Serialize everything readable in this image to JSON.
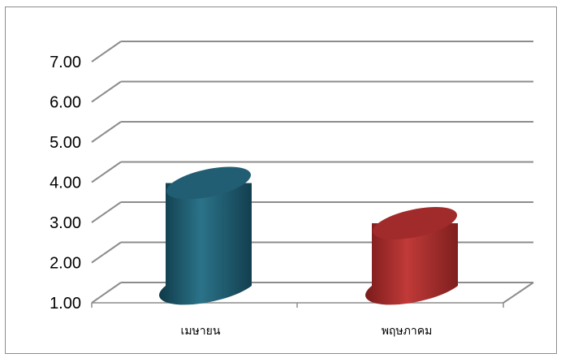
{
  "chart_data": {
    "type": "bar",
    "style": "3d-cylinder",
    "categories": [
      "เมษายน",
      "พฤษภาคม"
    ],
    "values": [
      3.9,
      2.9
    ],
    "bar_colors": [
      "#215e73",
      "#a12a2a"
    ],
    "title": "",
    "xlabel": "",
    "ylabel": "",
    "ylim": [
      1.0,
      7.0
    ],
    "yticks": [
      "1.00",
      "2.00",
      "3.00",
      "4.00",
      "5.00",
      "6.00",
      "7.00"
    ],
    "grid": true,
    "legend": "none"
  }
}
